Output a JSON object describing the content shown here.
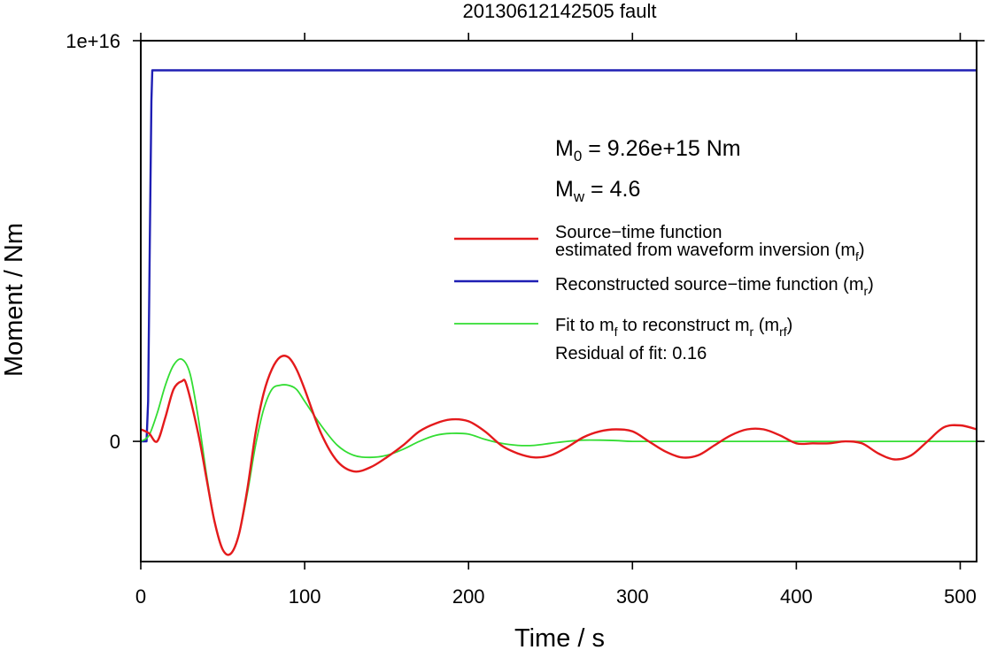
{
  "chart_data": {
    "type": "line",
    "title": "20130612142505 fault",
    "xlabel": "Time / s",
    "ylabel": "Moment / Nm",
    "xlim": [
      0,
      510
    ],
    "ylim": [
      -3000000000000000.0,
      1e+16
    ],
    "x_ticks": [
      0,
      100,
      200,
      300,
      400,
      500
    ],
    "x_tick_labels": [
      "0",
      "100",
      "200",
      "300",
      "400",
      "500"
    ],
    "y_ticks": [
      0,
      1e+16
    ],
    "y_tick_labels": [
      "0",
      "1e+16"
    ],
    "grid": false,
    "legend_position": "right",
    "annotations": {
      "m0": {
        "symbol": "M",
        "sub": "0",
        "rest": " = 9.26e+15 Nm"
      },
      "mw": {
        "symbol": "M",
        "sub": "w",
        "rest": " = 4.6"
      },
      "residual": "Residual of fit: 0.16"
    },
    "legend": [
      {
        "series": "red",
        "color": "#e41a1c",
        "lines": [
          [
            {
              "t": "Source−time function"
            }
          ],
          [
            {
              "t": "estimated from waveform inversion (m"
            },
            {
              "t": "f",
              "sub": true
            },
            {
              "t": ")"
            }
          ]
        ]
      },
      {
        "series": "blue",
        "color": "#1f1fb4",
        "lines": [
          [
            {
              "t": "Reconstructed source−time function (m"
            },
            {
              "t": "r",
              "sub": true
            },
            {
              "t": ")"
            }
          ]
        ]
      },
      {
        "series": "green",
        "color": "#33dd33",
        "lines": [
          [
            {
              "t": "Fit to m"
            },
            {
              "t": "f",
              "sub": true
            },
            {
              "t": " to reconstruct m"
            },
            {
              "t": "r",
              "sub": true
            },
            {
              "t": " (m"
            },
            {
              "t": "rf",
              "sub": true
            },
            {
              "t": ")"
            }
          ]
        ]
      }
    ],
    "series": [
      {
        "color": "#e41a1c",
        "x": [
          0,
          5,
          10,
          15,
          20,
          25,
          28,
          35,
          40,
          45,
          50,
          55,
          60,
          65,
          70,
          75,
          80,
          85,
          90,
          95,
          100,
          110,
          120,
          130,
          140,
          150,
          160,
          170,
          180,
          190,
          200,
          210,
          220,
          230,
          240,
          250,
          260,
          270,
          280,
          290,
          300,
          310,
          320,
          330,
          340,
          350,
          360,
          370,
          380,
          390,
          400,
          410,
          420,
          430,
          440,
          450,
          460,
          470,
          480,
          490,
          500,
          510
        ],
        "y": [
          300000000000000.0,
          200000000000000.0,
          0.0,
          600000000000000.0,
          1300000000000000.0,
          1500000000000000.0,
          1400000000000000.0,
          200000000000000.0,
          -900000000000000.0,
          -2000000000000000.0,
          -2700000000000000.0,
          -2800000000000000.0,
          -2300000000000000.0,
          -1200000000000000.0,
          200000000000000.0,
          1200000000000000.0,
          1800000000000000.0,
          2100000000000000.0,
          2100000000000000.0,
          1800000000000000.0,
          1300000000000000.0,
          200000000000000.0,
          -500000000000000.0,
          -750000000000000.0,
          -650000000000000.0,
          -400000000000000.0,
          -100000000000000.0,
          250000000000000.0,
          450000000000000.0,
          550000000000000.0,
          500000000000000.0,
          250000000000000.0,
          -100000000000000.0,
          -300000000000000.0,
          -400000000000000.0,
          -350000000000000.0,
          -150000000000000.0,
          100000000000000.0,
          250000000000000.0,
          300000000000000.0,
          250000000000000.0,
          0.0,
          -250000000000000.0,
          -400000000000000.0,
          -350000000000000.0,
          -100000000000000.0,
          150000000000000.0,
          300000000000000.0,
          300000000000000.0,
          150000000000000.0,
          -50000000000000.0,
          -50000000000000.0,
          -50000000000000.0,
          0.0,
          -50000000000000.0,
          -300000000000000.0,
          -450000000000000.0,
          -350000000000000.0,
          0.0,
          350000000000000.0,
          400000000000000.0,
          300000000000000.0
        ]
      },
      {
        "color": "#1f1fb4",
        "x": [
          0,
          3.5,
          4.5,
          5.5,
          6.5,
          7,
          8,
          100,
          200,
          300,
          400,
          500,
          510
        ],
        "y": [
          0,
          0,
          1000000000000000.0,
          5000000000000000.0,
          8500000000000000.0,
          9260000000000000.0,
          9260000000000000.0,
          9260000000000000.0,
          9260000000000000.0,
          9260000000000000.0,
          9260000000000000.0,
          9260000000000000.0,
          9260000000000000.0
        ]
      },
      {
        "color": "#33dd33",
        "x": [
          0,
          5,
          10,
          15,
          20,
          25,
          30,
          35,
          40,
          45,
          50,
          55,
          60,
          65,
          70,
          75,
          80,
          85,
          90,
          95,
          100,
          110,
          120,
          130,
          140,
          150,
          160,
          170,
          180,
          190,
          200,
          210,
          220,
          230,
          240,
          250,
          260,
          270,
          280,
          290,
          300,
          320,
          340,
          360,
          380,
          400,
          420,
          440,
          460,
          480,
          500,
          510
        ],
        "y": [
          0.0,
          150000000000000.0,
          700000000000000.0,
          1400000000000000.0,
          1900000000000000.0,
          2050000000000000.0,
          1700000000000000.0,
          600000000000000.0,
          -800000000000000.0,
          -2000000000000000.0,
          -2700000000000000.0,
          -2800000000000000.0,
          -2300000000000000.0,
          -1300000000000000.0,
          -100000000000000.0,
          800000000000000.0,
          1300000000000000.0,
          1400000000000000.0,
          1400000000000000.0,
          1300000000000000.0,
          1000000000000000.0,
          400000000000000.0,
          -100000000000000.0,
          -350000000000000.0,
          -400000000000000.0,
          -350000000000000.0,
          -200000000000000.0,
          0.0,
          150000000000000.0,
          200000000000000.0,
          180000000000000.0,
          50000000000000.0,
          -50000000000000.0,
          -100000000000000.0,
          -100000000000000.0,
          -50000000000000.0,
          0.0,
          30000000000000.0,
          30000000000000.0,
          20000000000000.0,
          0.0,
          0.0,
          0.0,
          0.0,
          0.0,
          0.0,
          0.0,
          0.0,
          0.0,
          0.0,
          0.0,
          0.0
        ]
      }
    ]
  }
}
